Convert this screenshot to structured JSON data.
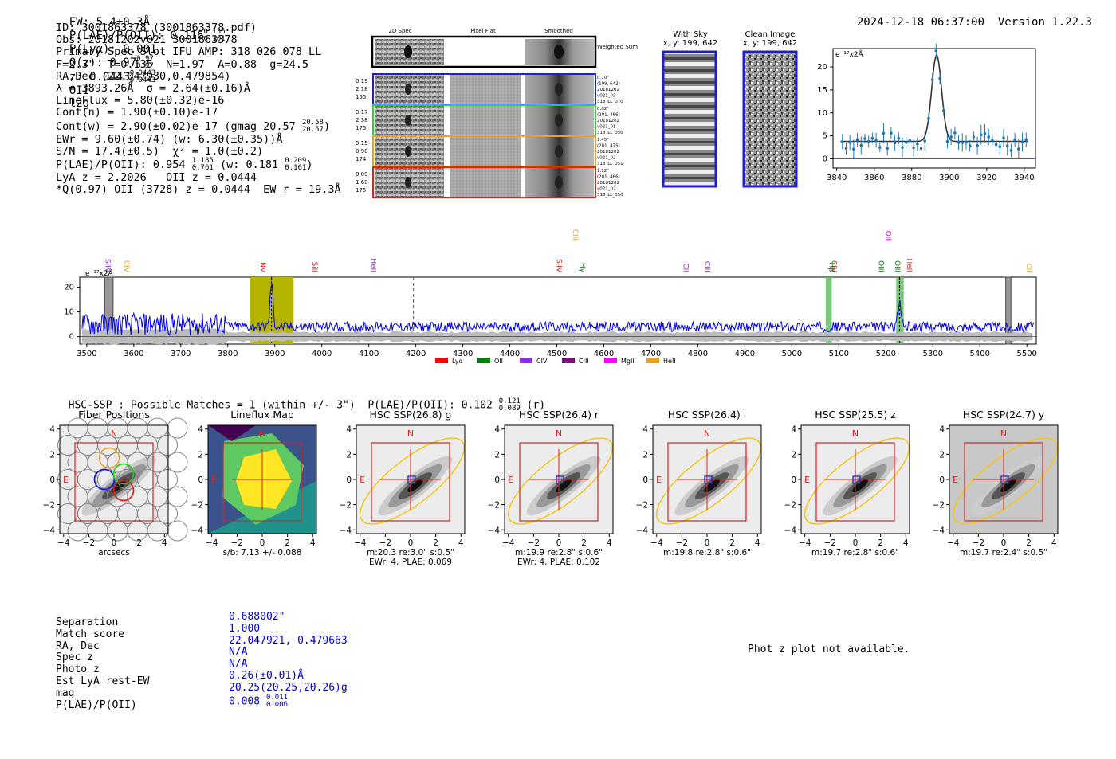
{
  "header": {
    "ew": "EW: 5.4±0.3Å",
    "plae_label": "P(LAE)/P(OII): 0.116",
    "plae_hi": "0.136",
    "plae_lo": "0.101",
    "plya": "P(Lyα): 0.001",
    "qz_label": "Q(z): 0.97",
    "qz_hi": "0.97",
    "qz_lo": "0.97",
    "z_label": "z: 0.0443",
    "z_hi": "0.0443",
    "z_lo": "0.0443",
    "z_line": "OII",
    "tag": "lzg",
    "datetime": "2024-12-18 06:37:00",
    "version": "Version 1.22.3"
  },
  "info": {
    "id": "ID: 3001863378 (3001863378.pdf)",
    "obs": "Obs: 20181202v021_3001863378",
    "primary": "Primary Spec_Slot_IFU_AMP: 318_026_078_LL",
    "params": "F=2.3\"  T=0.135  N=1.97  A=0.88  g=24.5",
    "radec": "RA,Dec (22.047930,0.479854)",
    "lambda": "λ = 3893.26Å  σ = 2.64(±0.16)Å",
    "lineflux": "LineFlux = 5.80(±0.32)e-16",
    "contn": "Cont(n) = 1.90(±0.10)e-17",
    "contw": "Cont(w) = 2.90(±0.02)e-17 (gmag 20.57",
    "contw_hi": "20.58",
    "contw_lo": "20.57",
    "ewr": "EWr = 9.60(±0.74) (w: 6.30(±0.35))Å",
    "sn": "S/N = 17.4(±0.5)  χ² = 1.0(±0.2)",
    "plae": "P(LAE)/P(OII): 0.954",
    "plae_hi": "1.185",
    "plae_lo": "0.761",
    "plae_w": "(w: 0.181",
    "plae_w_hi": "0.209",
    "plae_w_lo": "0.161",
    "lya": "LyA z = 2.2026   OII z = 0.0444",
    "q": "*Q(0.97) OII (3728) z = 0.0444  EW r = 19.3Å"
  },
  "cutouts": {
    "col_headers": [
      "2D Spec",
      "Pixel Flat",
      "Smoothed"
    ],
    "weighted_sum": "Weighted Sum",
    "rows": [
      {
        "left": [
          "0.19",
          "2.18",
          "155"
        ],
        "right": [
          "0.70\"",
          "(199, 642)",
          "20181202",
          "v021_03",
          "318_LL_070"
        ],
        "color": "#1f1fcc"
      },
      {
        "left": [
          "0.17",
          "2.38",
          "175"
        ],
        "right": [
          "0.82\"",
          "(201, 466)",
          "20181202",
          "v021_01",
          "318_LL_050"
        ],
        "color": "#33cc33"
      },
      {
        "left": [
          "0.15",
          "0.98",
          "174"
        ],
        "right": [
          "1.45\"",
          "(201, 475)",
          "20181202",
          "v021_02",
          "318_LL_051"
        ],
        "color": "#f0a020"
      },
      {
        "left": [
          "0.09",
          "1.60",
          "175"
        ],
        "right": [
          "1.12\"",
          "(201, 466)",
          "20181202",
          "v021_02",
          "318_LL_050"
        ],
        "color": "#e02020"
      }
    ]
  },
  "sky": {
    "with_sky": "With Sky",
    "with_sky_xy": "x, y: 199, 642",
    "clean": "Clean Image",
    "clean_xy": "x, y: 199, 642"
  },
  "fit_plot": {
    "unit": "e⁻¹⁷x2Å",
    "x_ticks": [
      "3840",
      "3860",
      "3880",
      "3900",
      "3920",
      "3940"
    ],
    "y_ticks": [
      "0",
      "5",
      "10",
      "15",
      "20"
    ]
  },
  "spectrum": {
    "unit": "e⁻¹⁷x2Å",
    "x_ticks": [
      "3500",
      "3600",
      "3700",
      "3800",
      "3900",
      "4000",
      "4100",
      "4200",
      "4300",
      "4400",
      "4500",
      "4600",
      "4700",
      "4800",
      "4900",
      "5000",
      "5100",
      "5200",
      "5300",
      "5400",
      "5500"
    ],
    "y_ticks": [
      "0",
      "10",
      "20"
    ],
    "line_labels": [
      {
        "name": "SiIV",
        "wave": 3540,
        "color": "#8a2be2",
        "row": 0
      },
      {
        "name": "CIV",
        "wave": 3580,
        "color": "#f0a020",
        "row": 0
      },
      {
        "name": "NV",
        "wave": 3870,
        "color": "#e02020",
        "row": 0
      },
      {
        "name": "SiII",
        "wave": 3980,
        "color": "#e02020",
        "row": 0
      },
      {
        "name": "HeII",
        "wave": 4105,
        "color": "#8a2be2",
        "row": 0
      },
      {
        "name": "CIII",
        "wave": 4535,
        "color": "#f0a020",
        "row": 1
      },
      {
        "name": "SiIV",
        "wave": 4500,
        "color": "#e02020",
        "row": 0
      },
      {
        "name": "Hγ",
        "wave": 4550,
        "color": "#007700",
        "row": 0
      },
      {
        "name": "CII",
        "wave": 4770,
        "color": "#8a2be2",
        "row": 0
      },
      {
        "name": "CIII",
        "wave": 4815,
        "color": "#8a2be2",
        "row": 0
      },
      {
        "name": "CIV",
        "wave": 5085,
        "color": "#e02020",
        "row": 0
      },
      {
        "name": "Hβ",
        "wave": 5080,
        "color": "#007700",
        "row": 0
      },
      {
        "name": "OII",
        "wave": 5200,
        "color": "#ff00ff",
        "row": 1
      },
      {
        "name": "OIII",
        "wave": 5185,
        "color": "#007700",
        "row": 0
      },
      {
        "name": "OIII",
        "wave": 5220,
        "color": "#007700",
        "row": 0
      },
      {
        "name": "HeII",
        "wave": 5245,
        "color": "#e02020",
        "row": 0
      },
      {
        "name": "CII",
        "wave": 5500,
        "color": "#f0a020",
        "row": 0
      }
    ],
    "legend": [
      {
        "name": "Lyα",
        "color": "#ff0000"
      },
      {
        "name": "OII",
        "color": "#008000"
      },
      {
        "name": "CIV",
        "color": "#8a2be2"
      },
      {
        "name": "CIII",
        "color": "#7b0f7b"
      },
      {
        "name": "MgII",
        "color": "#ff00ff"
      },
      {
        "name": "HeII",
        "color": "#f0a020"
      }
    ]
  },
  "hsc": {
    "title": "HSC-SSP : Possible Matches = 1 (within +/- 3\")  P(LAE)/P(OII): 0.102",
    "title_hi": "0.121",
    "title_lo": "0.089",
    "title_band": "(r)",
    "panels": [
      {
        "title": "Fiber Positions",
        "caption1": "arcsecs",
        "caption2": ""
      },
      {
        "title": "Lineflux Map",
        "caption1": "s/b: 7.13 +/- 0.088",
        "caption2": ""
      },
      {
        "title": "HSC SSP(26.8) g",
        "caption1": "m:20.3  re:3.0\"  s:0.5\"",
        "caption2": "EWr: 4, PLAE: 0.069"
      },
      {
        "title": "HSC SSP(26.4) r",
        "caption1": "m:19.9  re:2.8\"  s:0.6\"",
        "caption2": "EWr: 4, PLAE: 0.102"
      },
      {
        "title": "HSC SSP(26.4) i",
        "caption1": "m:19.8  re:2.8\"  s:0.6\"",
        "caption2": ""
      },
      {
        "title": "HSC SSP(25.5) z",
        "caption1": "m:19.7  re:2.8\"  s:0.6\"",
        "caption2": ""
      },
      {
        "title": "HSC SSP(24.7) y",
        "caption1": "m:19.7  re:2.4\"  s:0.5\"",
        "caption2": ""
      }
    ],
    "axis_ticks": [
      "-4",
      "-2",
      "0",
      "2",
      "4"
    ],
    "north": "N",
    "east": "E"
  },
  "match_table": {
    "labels": [
      "Separation",
      "Match score",
      "RA, Dec",
      "Spec z",
      "Photo z",
      "Est LyA rest-EW",
      "mag",
      "P(LAE)/P(OII)"
    ],
    "values": [
      "0.688002\"",
      "1.000",
      "22.047921, 0.479663",
      "N/A",
      "N/A",
      "0.26(±0.01)Å",
      "20.25(20.25,20.26)g",
      "0.008"
    ],
    "plae_hi": "0.011",
    "plae_lo": "0.006"
  },
  "photz_note": "Phot z plot not available."
}
